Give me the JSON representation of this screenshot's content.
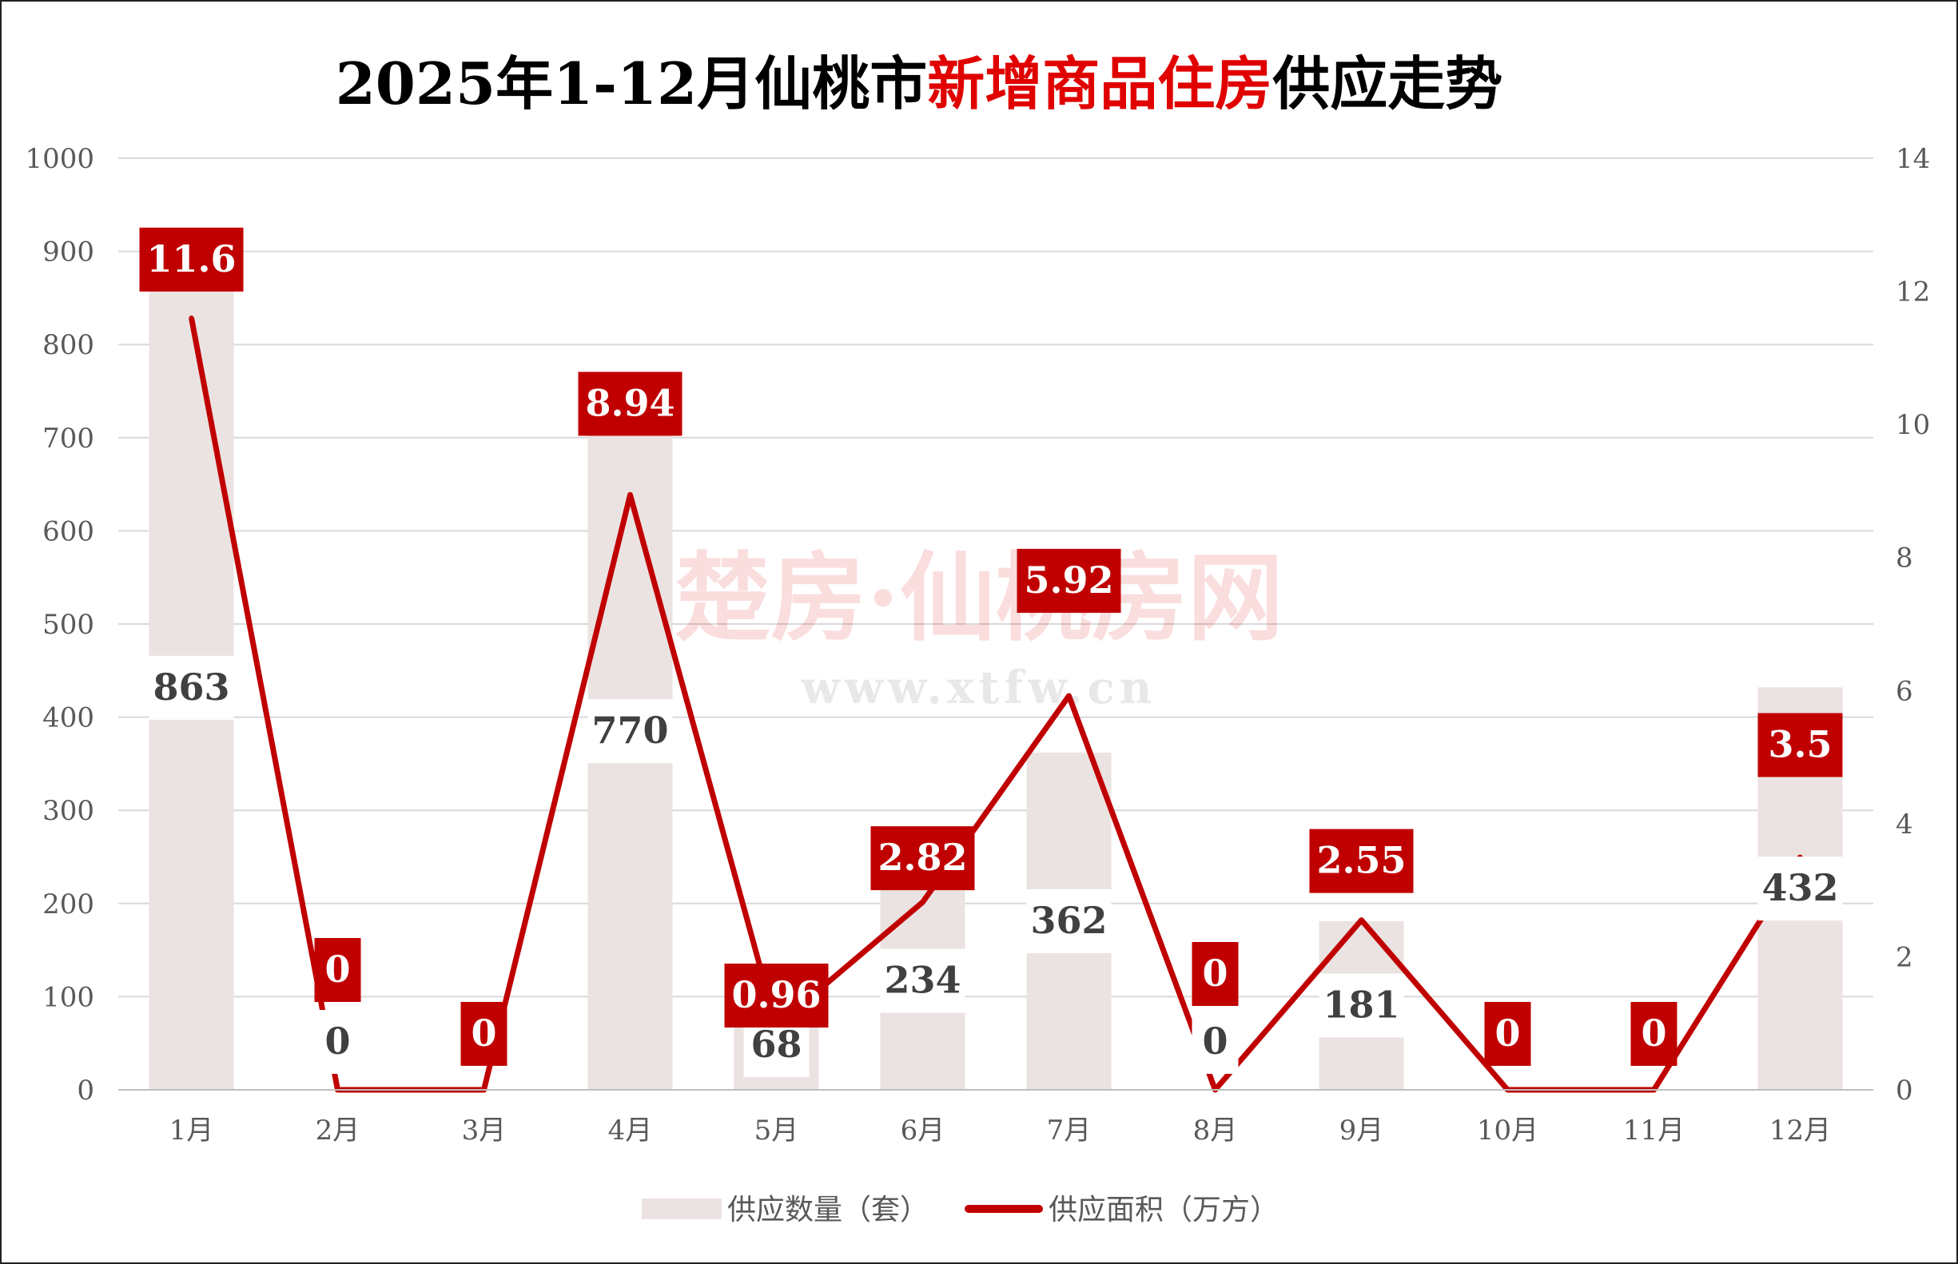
{
  "chart_data": {
    "type": "bar+line",
    "title_parts": [
      {
        "text": "2025年1-12月仙桃市",
        "color": "#000000"
      },
      {
        "text": "新增商品住房",
        "color": "#e00000"
      },
      {
        "text": "供应走势",
        "color": "#000000"
      }
    ],
    "categories": [
      "1月",
      "2月",
      "3月",
      "4月",
      "5月",
      "6月",
      "7月",
      "8月",
      "9月",
      "10月",
      "11月",
      "12月"
    ],
    "series": [
      {
        "name": "供应数量（套）",
        "type": "bar",
        "axis": "left",
        "color": "#ebe3e1",
        "values": [
          863,
          0,
          0,
          770,
          68,
          234,
          362,
          0,
          181,
          0,
          0,
          432
        ],
        "labels": [
          "863",
          "0",
          "",
          "770",
          "68",
          "234",
          "362",
          "0",
          "181",
          "",
          "",
          "432"
        ]
      },
      {
        "name": "供应面积（万方）",
        "type": "line",
        "axis": "right",
        "color": "#c00000",
        "values": [
          11.6,
          0,
          0,
          8.94,
          0.96,
          2.82,
          5.92,
          0,
          2.55,
          0,
          0,
          3.5
        ],
        "labels": [
          "11.6",
          "0",
          "0",
          "8.94",
          "0.96",
          "2.82",
          "5.92",
          "0",
          "2.55",
          "0",
          "0",
          "3.5"
        ]
      }
    ],
    "y_left": {
      "min": 0,
      "max": 1000,
      "ticks": [
        "0",
        "100",
        "200",
        "300",
        "400",
        "500",
        "600",
        "700",
        "800",
        "900",
        "1000"
      ]
    },
    "y_right": {
      "min": 0,
      "max": 14,
      "ticks": [
        "0",
        "2",
        "4",
        "6",
        "8",
        "10",
        "12",
        "14"
      ]
    },
    "grid": true,
    "legend_position": "bottom"
  },
  "watermark": {
    "line1": "楚房·仙桃房网",
    "line2": "www.xtfw.cn"
  }
}
